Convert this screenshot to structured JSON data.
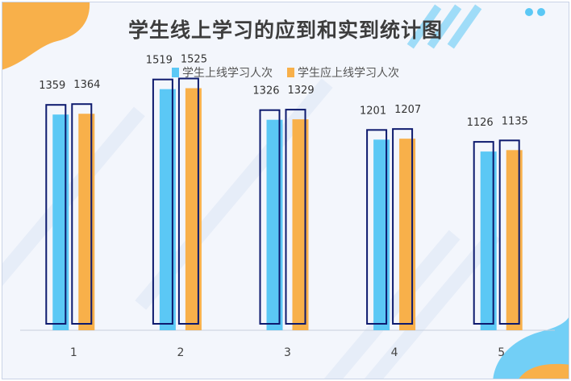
{
  "chart_data": {
    "type": "bar",
    "title": "学生线上学习的应到和实到统计图",
    "categories": [
      "1",
      "2",
      "3",
      "4",
      "5"
    ],
    "series": [
      {
        "name": "学生上线学习人次",
        "values": [
          1359,
          1519,
          1326,
          1201,
          1126
        ],
        "color": "#5bc8f5"
      },
      {
        "name": "学生应上线学习人次",
        "values": [
          1364,
          1525,
          1329,
          1207,
          1135
        ],
        "color": "#f8b04a"
      }
    ],
    "outline_color": "#0d1a6e",
    "legend_position": "top",
    "grid": false,
    "ylim": [
      0,
      1700
    ]
  }
}
